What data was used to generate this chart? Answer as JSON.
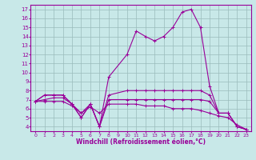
{
  "xlabel": "Windchill (Refroidissement éolien,°C)",
  "bg_color": "#c8e8e8",
  "line_color": "#990099",
  "grid_color": "#99bbbb",
  "xlim": [
    -0.5,
    23.5
  ],
  "ylim": [
    3.5,
    17.5
  ],
  "yticks": [
    4,
    5,
    6,
    7,
    8,
    9,
    10,
    11,
    12,
    13,
    14,
    15,
    16,
    17
  ],
  "xticks": [
    0,
    1,
    2,
    3,
    4,
    5,
    6,
    7,
    8,
    9,
    10,
    11,
    12,
    13,
    14,
    15,
    16,
    17,
    18,
    19,
    20,
    21,
    22,
    23
  ],
  "lines": [
    {
      "x": [
        0,
        1,
        2,
        3,
        4,
        5,
        6,
        7,
        8,
        10,
        11,
        12,
        13,
        14,
        15,
        16,
        17,
        18,
        19,
        20,
        21,
        22,
        23
      ],
      "y": [
        6.8,
        7.5,
        7.5,
        7.5,
        6.5,
        5.0,
        6.5,
        4.0,
        9.5,
        12.0,
        14.6,
        14.0,
        13.5,
        14.0,
        15.0,
        16.7,
        17.0,
        15.0,
        8.5,
        5.5,
        5.5,
        4.0,
        3.7
      ]
    },
    {
      "x": [
        0,
        1,
        2,
        3,
        4,
        5,
        6,
        7,
        8,
        10,
        11,
        12,
        13,
        14,
        15,
        16,
        17,
        18,
        19,
        20,
        21,
        22,
        23
      ],
      "y": [
        6.8,
        7.5,
        7.5,
        7.5,
        6.5,
        5.0,
        6.5,
        4.0,
        7.5,
        8.0,
        8.0,
        8.0,
        8.0,
        8.0,
        8.0,
        8.0,
        8.0,
        8.0,
        7.5,
        5.5,
        5.5,
        4.0,
        3.7
      ]
    },
    {
      "x": [
        0,
        1,
        2,
        3,
        4,
        5,
        6,
        7,
        8,
        10,
        11,
        12,
        13,
        14,
        15,
        16,
        17,
        18,
        19,
        20,
        21,
        22,
        23
      ],
      "y": [
        6.8,
        7.0,
        7.2,
        7.2,
        6.5,
        5.5,
        6.5,
        4.0,
        7.0,
        7.0,
        7.0,
        7.0,
        7.0,
        7.0,
        7.0,
        7.0,
        7.0,
        7.0,
        6.8,
        5.5,
        5.5,
        4.0,
        3.7
      ]
    },
    {
      "x": [
        0,
        1,
        2,
        3,
        4,
        5,
        6,
        7,
        8,
        10,
        11,
        12,
        13,
        14,
        15,
        16,
        17,
        18,
        19,
        20,
        21,
        22,
        23
      ],
      "y": [
        6.8,
        6.8,
        6.8,
        6.8,
        6.3,
        5.5,
        6.2,
        5.5,
        6.5,
        6.5,
        6.5,
        6.3,
        6.3,
        6.3,
        6.0,
        6.0,
        6.0,
        5.8,
        5.5,
        5.2,
        5.0,
        4.2,
        3.7
      ]
    }
  ]
}
